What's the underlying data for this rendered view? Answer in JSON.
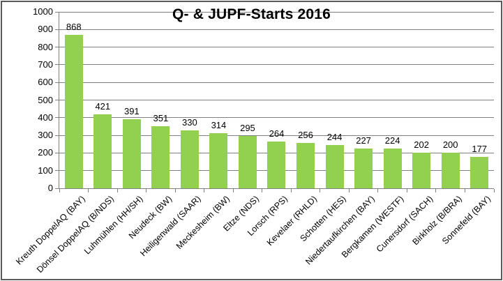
{
  "chart_data": {
    "type": "bar",
    "title": "Q- & JUPF-Starts 2016",
    "categories": [
      "Kreuth DoppelAQ (BAY)",
      "Dönsel DoppelAQ (B/NDS)",
      "Luhmühlen (HH/SH)",
      "Neudeck (BW)",
      "Heiligenwald (SAAR)",
      "Meckesheim (BW)",
      "Eltze (NDS)",
      "Lorsch (RPS)",
      "Kevelaer (RHLD)",
      "Schotten (HES)",
      "Niedertaufkirchen (BAY)",
      "Bergkamen (WESTF)",
      "Cunersdorf (SACH)",
      "Birkholz (B/BRA)",
      "Sonnefeld (BAY)"
    ],
    "values": [
      868,
      421,
      391,
      351,
      330,
      314,
      295,
      264,
      256,
      244,
      227,
      224,
      202,
      200,
      177
    ],
    "xlabel": "",
    "ylabel": "",
    "ylim": [
      0,
      1000
    ],
    "yticks": [
      0,
      100,
      200,
      300,
      400,
      500,
      600,
      700,
      800,
      900,
      1000
    ],
    "grid": true,
    "legend": "none",
    "data_labels": true,
    "x_label_rotation_deg": -45,
    "colors": {
      "bar": "#92D050",
      "grid": "#808080",
      "axis": "#808080",
      "text": "#000000",
      "border": "#595959",
      "background": "#FFFFFF"
    }
  }
}
